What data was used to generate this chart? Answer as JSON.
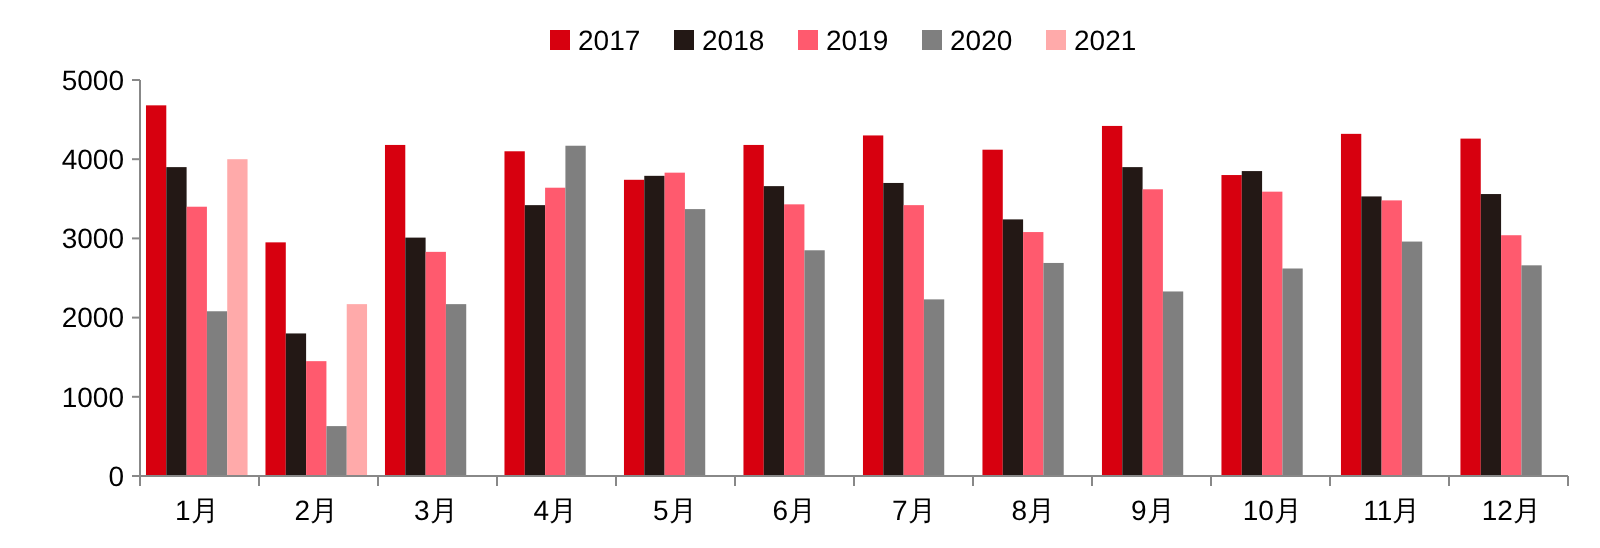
{
  "chart_data": {
    "type": "bar",
    "categories": [
      "1月",
      "2月",
      "3月",
      "4月",
      "5月",
      "6月",
      "7月",
      "8月",
      "9月",
      "10月",
      "11月",
      "12月"
    ],
    "series": [
      {
        "name": "2017",
        "color": "#d7000f",
        "values": [
          4680,
          2950,
          4180,
          4100,
          3740,
          4180,
          4300,
          4120,
          4420,
          3800,
          4320,
          4260
        ]
      },
      {
        "name": "2018",
        "color": "#231815",
        "values": [
          3900,
          1800,
          3010,
          3420,
          3790,
          3660,
          3700,
          3240,
          3900,
          3850,
          3530,
          3560
        ]
      },
      {
        "name": "2019",
        "color": "#ff5a6e",
        "values": [
          3400,
          1450,
          2830,
          3640,
          3830,
          3430,
          3420,
          3080,
          3620,
          3590,
          3480,
          3040
        ]
      },
      {
        "name": "2020",
        "color": "#7f7f7f",
        "values": [
          2080,
          630,
          2170,
          4170,
          3370,
          2850,
          2230,
          2690,
          2330,
          2620,
          2960,
          2660
        ]
      },
      {
        "name": "2021",
        "color": "#ffaaaa",
        "values": [
          4000,
          2170,
          null,
          null,
          null,
          null,
          null,
          null,
          null,
          null,
          null,
          null
        ]
      }
    ],
    "ylim": [
      0,
      5000
    ],
    "yticks": [
      0,
      1000,
      2000,
      3000,
      4000,
      5000
    ],
    "grid": false,
    "legend": "top"
  }
}
